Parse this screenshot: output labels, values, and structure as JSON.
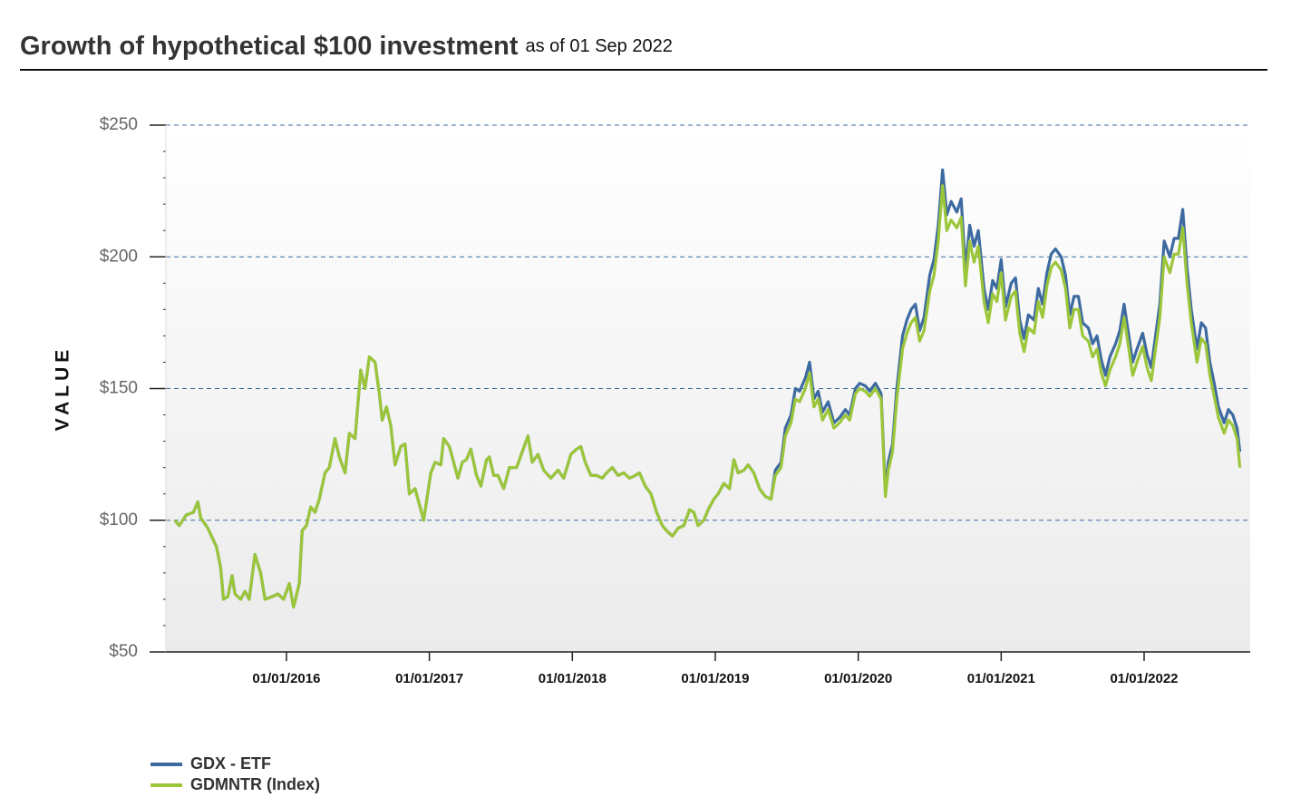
{
  "chart_data": {
    "type": "line",
    "title": "Growth of hypothetical $100 investment",
    "subtitle": "as of 01 Sep 2022",
    "ylabel": "VALUE",
    "xlim": [
      2015.157,
      2022.742
    ],
    "xticks": [
      {
        "value": 2016,
        "label": "01/01/2016"
      },
      {
        "value": 2017,
        "label": "01/01/2017"
      },
      {
        "value": 2018,
        "label": "01/01/2018"
      },
      {
        "value": 2019,
        "label": "01/01/2019"
      },
      {
        "value": 2020,
        "label": "01/01/2020"
      },
      {
        "value": 2021,
        "label": "01/01/2021"
      },
      {
        "value": 2022,
        "label": "01/01/2022"
      }
    ],
    "ylim": [
      50,
      250
    ],
    "yticks": [
      {
        "value": 50,
        "label": "$50"
      },
      {
        "value": 100,
        "label": "$100"
      },
      {
        "value": 150,
        "label": "$150"
      },
      {
        "value": 200,
        "label": "$200"
      },
      {
        "value": 250,
        "label": "$250"
      }
    ],
    "grid": true,
    "legend": "bottom-left",
    "x": [
      2015.22,
      2015.25,
      2015.3,
      2015.35,
      2015.38,
      2015.4,
      2015.45,
      2015.51,
      2015.54,
      2015.56,
      2015.59,
      2015.62,
      2015.64,
      2015.68,
      2015.71,
      2015.74,
      2015.78,
      2015.82,
      2015.85,
      2015.9,
      2015.94,
      2015.98,
      2016.02,
      2016.05,
      2016.09,
      2016.11,
      2016.14,
      2016.17,
      2016.2,
      2016.23,
      2016.27,
      2016.3,
      2016.34,
      2016.37,
      2016.41,
      2016.44,
      2016.48,
      2016.52,
      2016.55,
      2016.58,
      2016.62,
      2016.65,
      2016.67,
      2016.7,
      2016.73,
      2016.76,
      2016.8,
      2016.83,
      2016.86,
      2016.9,
      2016.93,
      2016.96,
      2017.01,
      2017.04,
      2017.08,
      2017.1,
      2017.14,
      2017.17,
      2017.2,
      2017.23,
      2017.26,
      2017.29,
      2017.33,
      2017.36,
      2017.4,
      2017.42,
      2017.45,
      2017.48,
      2017.52,
      2017.56,
      2017.61,
      2017.65,
      2017.69,
      2017.72,
      2017.76,
      2017.8,
      2017.85,
      2017.9,
      2017.94,
      2017.99,
      2018.03,
      2018.06,
      2018.09,
      2018.13,
      2018.17,
      2018.21,
      2018.24,
      2018.28,
      2018.32,
      2018.36,
      2018.4,
      2018.44,
      2018.47,
      2018.51,
      2018.55,
      2018.59,
      2018.63,
      2018.66,
      2018.7,
      2018.74,
      2018.78,
      2018.82,
      2018.85,
      2018.88,
      2018.92,
      2018.95,
      2018.99,
      2019.02,
      2019.06,
      2019.1,
      2019.13,
      2019.16,
      2019.2,
      2019.23,
      2019.27,
      2019.31,
      2019.35,
      2019.39,
      2019.42,
      2019.46,
      2019.49,
      2019.53,
      2019.56,
      2019.59,
      2019.63,
      2019.66,
      2019.69,
      2019.72,
      2019.75,
      2019.79,
      2019.83,
      2019.87,
      2019.91,
      2019.94,
      2019.98,
      2020.01,
      2020.05,
      2020.08,
      2020.12,
      2020.16,
      2020.19,
      2020.21,
      2020.24,
      2020.27,
      2020.31,
      2020.34,
      2020.37,
      2020.4,
      2020.43,
      2020.46,
      2020.5,
      2020.53,
      2020.56,
      2020.59,
      2020.62,
      2020.65,
      2020.69,
      2020.72,
      2020.75,
      2020.78,
      2020.81,
      2020.84,
      2020.88,
      2020.91,
      2020.94,
      2020.97,
      2021.0,
      2021.03,
      2021.07,
      2021.1,
      2021.13,
      2021.16,
      2021.19,
      2021.23,
      2021.26,
      2021.29,
      2021.32,
      2021.35,
      2021.38,
      2021.42,
      2021.45,
      2021.48,
      2021.51,
      2021.54,
      2021.57,
      2021.61,
      2021.64,
      2021.67,
      2021.7,
      2021.73,
      2021.76,
      2021.8,
      2021.83,
      2021.86,
      2021.89,
      2021.92,
      2021.95,
      2021.99,
      2022.02,
      2022.05,
      2022.08,
      2022.11,
      2022.14,
      2022.18,
      2022.21,
      2022.24,
      2022.27,
      2022.3,
      2022.33,
      2022.37,
      2022.4,
      2022.43,
      2022.46,
      2022.49,
      2022.52,
      2022.56,
      2022.59,
      2022.62,
      2022.65,
      2022.67
    ],
    "series": [
      {
        "name": "GDX - ETF",
        "color": "#3d6aa0",
        "values": [
          100,
          98,
          102,
          103,
          107,
          101,
          97,
          90,
          82,
          70,
          71,
          79,
          72,
          70,
          73,
          70,
          87,
          80,
          70,
          71,
          72,
          70,
          76,
          67,
          76,
          96,
          98,
          105,
          103,
          108,
          118,
          120,
          131,
          124,
          118,
          133,
          131,
          157,
          150,
          162,
          160,
          148,
          138,
          143,
          136,
          121,
          128,
          129,
          110,
          112,
          106,
          100,
          118,
          122,
          121,
          131,
          128,
          122,
          116,
          122,
          123,
          127,
          117,
          113,
          123,
          124,
          117,
          117,
          112,
          120,
          120,
          126,
          132,
          122,
          125,
          119,
          116,
          119,
          116,
          125,
          127,
          128,
          122,
          117,
          117,
          116,
          118,
          120,
          117,
          118,
          116,
          117,
          118,
          113,
          110,
          103,
          98,
          96,
          94,
          97,
          98,
          104,
          103,
          98,
          100,
          104,
          108,
          110,
          114,
          112,
          123,
          118,
          119,
          121,
          118,
          112,
          109,
          108,
          119,
          122,
          135,
          140,
          150,
          149,
          154,
          160,
          146,
          149,
          141,
          145,
          137,
          139,
          142,
          140,
          150,
          152,
          151,
          149,
          152,
          148,
          111,
          122,
          129,
          150,
          170,
          176,
          180,
          182,
          172,
          177,
          193,
          199,
          212,
          233,
          216,
          221,
          217,
          222,
          195,
          212,
          204,
          210,
          188,
          180,
          191,
          188,
          199,
          181,
          190,
          192,
          176,
          169,
          178,
          176,
          188,
          182,
          194,
          201,
          203,
          200,
          193,
          178,
          185,
          185,
          175,
          173,
          167,
          170,
          161,
          155,
          162,
          167,
          172,
          182,
          171,
          160,
          165,
          171,
          163,
          158,
          170,
          182,
          206,
          200,
          207,
          207,
          218,
          196,
          180,
          165,
          175,
          173,
          160,
          152,
          143,
          137,
          142,
          140,
          135,
          126
        ]
      },
      {
        "name": "GDMNTR (Index)",
        "color": "#9cc63a",
        "values": [
          100,
          98,
          102,
          103,
          107,
          101,
          97,
          90,
          82,
          70,
          71,
          79,
          72,
          70,
          73,
          70,
          87,
          80,
          70,
          71,
          72,
          70,
          76,
          67,
          76,
          96,
          98,
          105,
          103,
          108,
          118,
          120,
          131,
          124,
          118,
          133,
          131,
          157,
          150,
          162,
          160,
          148,
          138,
          143,
          136,
          121,
          128,
          129,
          110,
          112,
          106,
          100,
          118,
          122,
          121,
          131,
          128,
          122,
          116,
          122,
          123,
          127,
          117,
          113,
          123,
          124,
          117,
          117,
          112,
          120,
          120,
          126,
          132,
          122,
          125,
          119,
          116,
          119,
          116,
          125,
          127,
          128,
          122,
          117,
          117,
          116,
          118,
          120,
          117,
          118,
          116,
          117,
          118,
          113,
          110,
          103,
          98,
          96,
          94,
          97,
          98,
          104,
          103,
          98,
          100,
          104,
          108,
          110,
          114,
          112,
          123,
          118,
          119,
          121,
          118,
          112,
          109,
          108,
          117,
          120,
          132,
          137,
          146,
          145,
          150,
          156,
          143,
          146,
          138,
          142,
          135,
          137,
          140,
          138,
          148,
          150,
          149,
          147,
          150,
          146,
          109,
          119,
          126,
          146,
          165,
          171,
          175,
          177,
          168,
          172,
          187,
          193,
          206,
          227,
          210,
          214,
          211,
          215,
          189,
          206,
          198,
          204,
          183,
          175,
          186,
          183,
          194,
          176,
          185,
          187,
          171,
          164,
          173,
          171,
          183,
          177,
          189,
          196,
          198,
          195,
          188,
          173,
          180,
          180,
          170,
          168,
          162,
          165,
          156,
          151,
          157,
          162,
          167,
          177,
          166,
          155,
          160,
          166,
          158,
          153,
          165,
          177,
          200,
          194,
          201,
          201,
          211,
          190,
          175,
          160,
          169,
          167,
          155,
          147,
          139,
          133,
          138,
          136,
          131,
          120
        ]
      }
    ]
  }
}
